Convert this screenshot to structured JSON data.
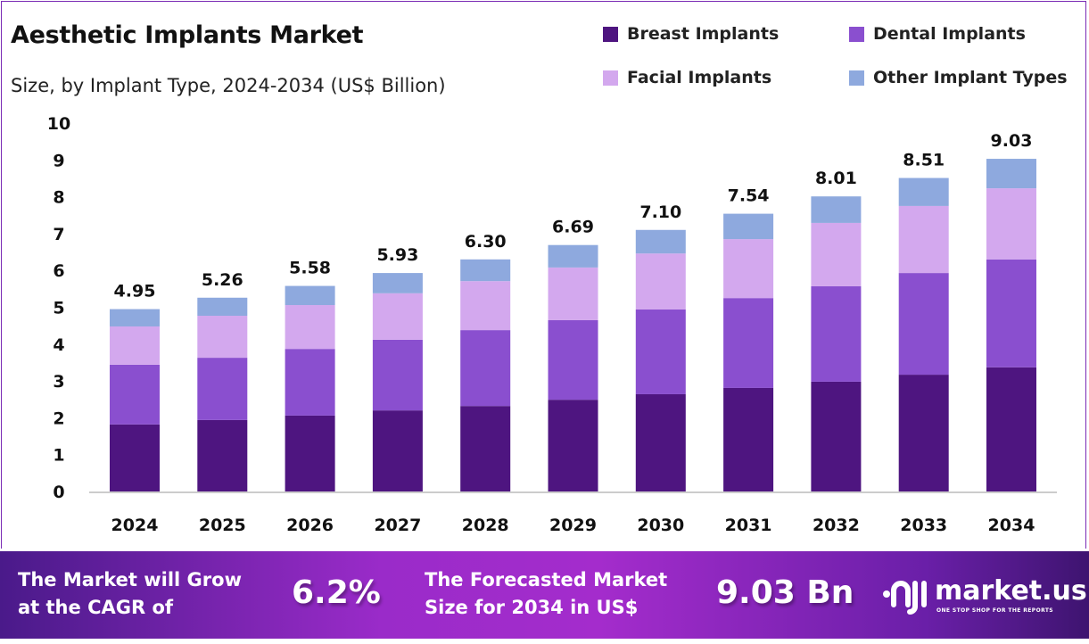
{
  "chart_data": {
    "type": "bar",
    "stacked": true,
    "title": "Aesthetic Implants Market",
    "subtitle": "Size, by Implant Type, 2024-2034 (US$ Billion)",
    "categories": [
      "2024",
      "2025",
      "2026",
      "2027",
      "2028",
      "2029",
      "2030",
      "2031",
      "2032",
      "2033",
      "2034"
    ],
    "series": [
      {
        "name": "Breast Implants",
        "color": "#4E1580",
        "values": [
          1.82,
          1.94,
          2.06,
          2.2,
          2.32,
          2.49,
          2.64,
          2.81,
          2.98,
          3.17,
          3.37
        ]
      },
      {
        "name": "Dental Implants",
        "color": "#8A4FCF",
        "values": [
          1.62,
          1.69,
          1.81,
          1.92,
          2.06,
          2.16,
          2.3,
          2.44,
          2.59,
          2.76,
          2.93
        ]
      },
      {
        "name": "Facial Implants",
        "color": "#D3A8EE",
        "values": [
          1.04,
          1.14,
          1.19,
          1.26,
          1.33,
          1.43,
          1.52,
          1.6,
          1.72,
          1.82,
          1.93
        ]
      },
      {
        "name": "Other Implant Types",
        "color": "#8EA9DE",
        "values": [
          0.47,
          0.49,
          0.52,
          0.55,
          0.59,
          0.61,
          0.64,
          0.69,
          0.72,
          0.76,
          0.8
        ]
      }
    ],
    "totals": [
      "4.95",
      "5.26",
      "5.58",
      "5.93",
      "6.30",
      "6.69",
      "7.10",
      "7.54",
      "8.01",
      "8.51",
      "9.03"
    ],
    "yticks": [
      "0",
      "1",
      "2",
      "3",
      "4",
      "5",
      "6",
      "7",
      "8",
      "9",
      "10"
    ],
    "ylim": [
      0,
      10
    ],
    "grid": false,
    "legend": "top-right"
  },
  "footer": {
    "cagr_label_1": "The Market will Grow",
    "cagr_label_2": "at the CAGR of",
    "cagr_value": "6.2%",
    "forecast_label_1": "The Forecasted Market",
    "forecast_label_2": "Size for 2034 in US$",
    "forecast_value": "9.03 Bn",
    "logo": "market.us",
    "logo_tagline": "ONE STOP SHOP FOR THE REPORTS"
  }
}
